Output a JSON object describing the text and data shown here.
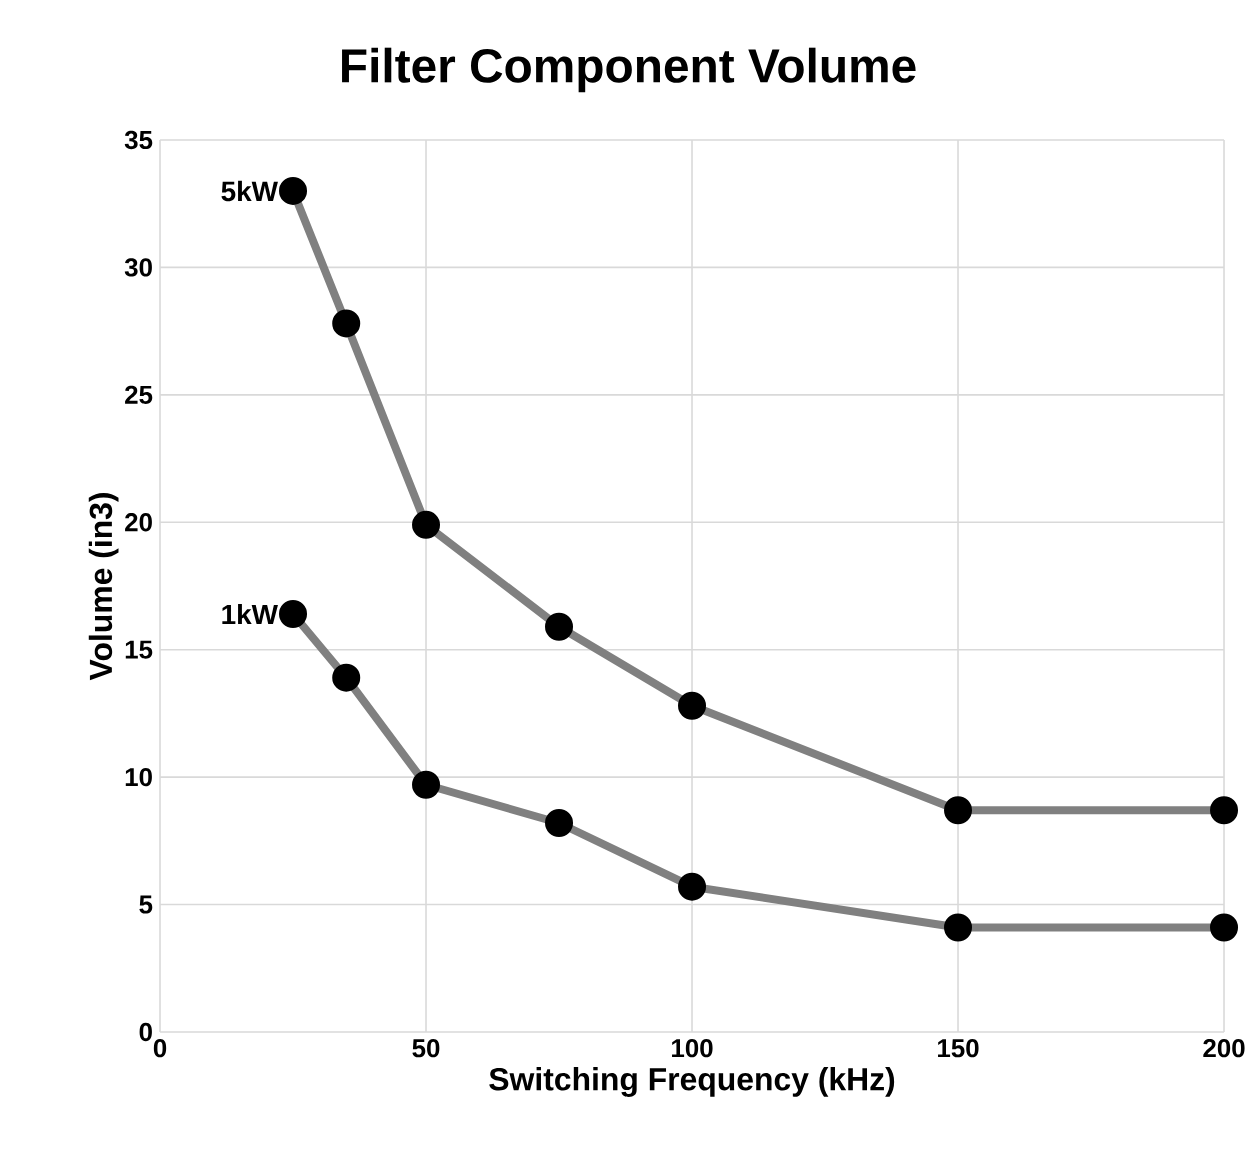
{
  "chart_data": {
    "type": "line",
    "title": "Filter Component Volume",
    "xlabel": "Switching Frequency (kHz)",
    "ylabel": "Volume (in3)",
    "x": [
      25,
      35,
      50,
      75,
      100,
      150,
      200
    ],
    "series": [
      {
        "name": "5kW",
        "color": "#808080",
        "values": [
          33,
          27.8,
          19.9,
          15.9,
          12.8,
          8.7,
          8.7
        ]
      },
      {
        "name": "1kW",
        "color": "#808080",
        "values": [
          16.4,
          13.9,
          9.7,
          8.2,
          5.7,
          4.1,
          4.1
        ]
      }
    ],
    "xlim": [
      0,
      200
    ],
    "xticks": [
      0,
      50,
      100,
      150,
      200
    ],
    "ylim": [
      0,
      35
    ],
    "yticks": [
      0,
      5,
      10,
      15,
      20,
      25,
      30,
      35
    ],
    "grid": true,
    "marker": "circle",
    "line_style": "solid"
  }
}
